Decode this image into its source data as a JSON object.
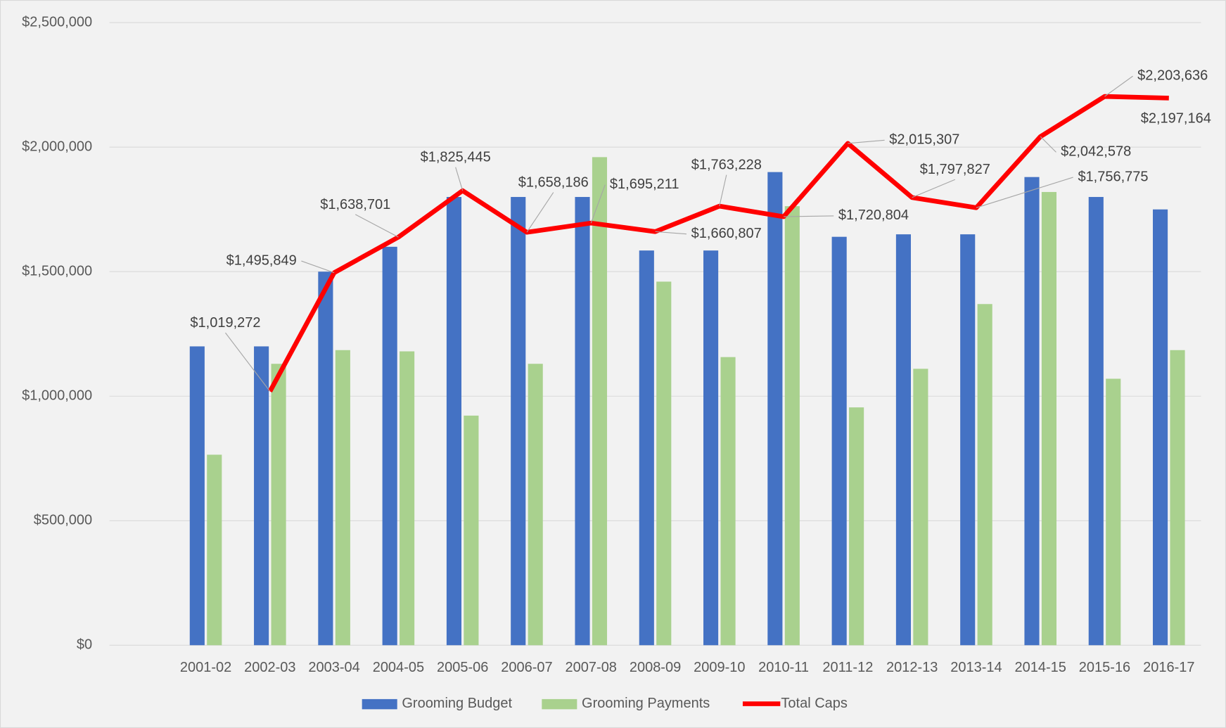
{
  "chart_data": {
    "type": "bar",
    "categories": [
      null,
      "2001-02",
      "2002-03",
      "2003-04",
      "2004-05",
      "2005-06",
      "2006-07",
      "2007-08",
      "2008-09",
      "2009-10",
      "2010-11",
      "2011-12",
      "2012-13",
      "2013-14",
      "2014-15",
      "2015-16",
      "2016-17"
    ],
    "series": [
      {
        "name": "Grooming Budget",
        "type": "bar",
        "color": "#4472c4",
        "values": [
          null,
          1200000,
          1200000,
          1500000,
          1600000,
          1800000,
          1800000,
          1800000,
          1585000,
          1585000,
          1900000,
          1640000,
          1650000,
          1650000,
          1880000,
          1800000,
          1750000
        ]
      },
      {
        "name": "Grooming Payments",
        "type": "bar",
        "color": "#a9d18e",
        "values": [
          null,
          765000,
          1130000,
          1185000,
          1180000,
          922000,
          1130000,
          1960000,
          1460000,
          1157000,
          1763000,
          955000,
          1110000,
          1370000,
          1820000,
          1070000,
          1185000
        ]
      },
      {
        "name": "Total Caps",
        "type": "line",
        "color": "#ff0000",
        "values": [
          null,
          null,
          1019272,
          1495849,
          1638701,
          1825445,
          1658186,
          1695211,
          1660807,
          1763228,
          1720804,
          2015307,
          1797827,
          1756775,
          2042578,
          2203636,
          2197164
        ],
        "value_labels": [
          null,
          null,
          "$1,019,272",
          "$1,495,849",
          "$1,638,701",
          "$1,825,445",
          "$1,658,186",
          "$1,695,211",
          "$1,660,807",
          "$1,763,228",
          "$1,720,804",
          "$2,015,307",
          "$1,797,827",
          "$1,756,775",
          "$2,042,578",
          "$2,203,636",
          "$2,197,164"
        ]
      }
    ],
    "ylim": [
      0,
      2500000
    ],
    "yticks": [
      {
        "value": 0,
        "label": "$0"
      },
      {
        "value": 500000,
        "label": "$500,000"
      },
      {
        "value": 1000000,
        "label": "$1,000,000"
      },
      {
        "value": 1500000,
        "label": "$1,500,000"
      },
      {
        "value": 2000000,
        "label": "$2,000,000"
      },
      {
        "value": 2500000,
        "label": "$2,500,000"
      }
    ],
    "grid": true,
    "legend": "bottom"
  }
}
